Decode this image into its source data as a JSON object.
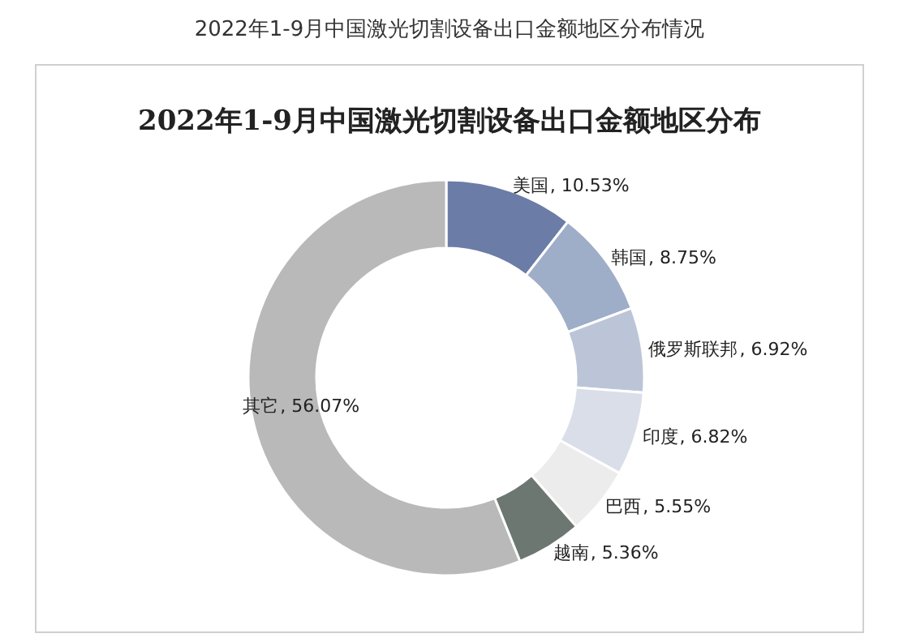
{
  "chart_data": {
    "type": "donut",
    "title": "2022年1-9月中国激光切割设备出口金额地区分布",
    "subtitle": "2022年1-9月中国激光切割设备出口金额地区分布情况",
    "categories": [
      "美国",
      "韩国",
      "俄罗斯联邦",
      "印度",
      "巴西",
      "越南",
      "其它"
    ],
    "values": [
      10.53,
      8.75,
      6.92,
      6.82,
      5.55,
      5.36,
      56.07
    ],
    "colors": [
      "#6b7ca6",
      "#9eadc8",
      "#bcc5d8",
      "#d9dee9",
      "#ececec",
      "#6d7771",
      "#b9b9b9"
    ],
    "value_labels": [
      ", 10.53%",
      ", 8.75%",
      ", 6.92%",
      ", 6.82%",
      ", 5.55%",
      ", 5.36%",
      ", 56.07%"
    ]
  }
}
